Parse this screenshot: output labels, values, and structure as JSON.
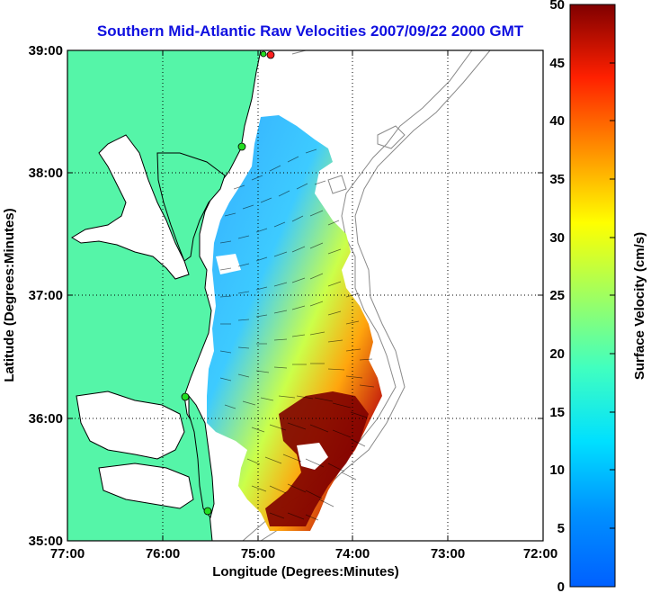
{
  "title": "Southern Mid-Atlantic Raw Velocities 2007/09/22 2000 GMT",
  "x_axis": {
    "label": "Longitude (Degrees:Minutes)",
    "ticks": [
      "77:00",
      "76:00",
      "75:00",
      "74:00",
      "73:00",
      "72:00"
    ],
    "range": [
      -77,
      -72
    ]
  },
  "y_axis": {
    "label": "Latitude (Degrees:Minutes)",
    "ticks": [
      "39:00",
      "38:00",
      "37:00",
      "36:00",
      "35:00"
    ],
    "range": [
      35,
      39
    ]
  },
  "colorbar": {
    "label": "Surface Velocity (cm/s)",
    "ticks": [
      "50",
      "45",
      "40",
      "35",
      "30",
      "25",
      "20",
      "15",
      "10",
      "5",
      "0"
    ],
    "range": [
      0,
      50
    ]
  },
  "colors": {
    "land": "#55f5a8",
    "coastline": "#000000",
    "title": "#1010e0",
    "bathymetry": "#8a8a8a",
    "site_markers": "#22dd22",
    "site_marker_north": "#ff2020"
  },
  "grid": "dotted"
}
